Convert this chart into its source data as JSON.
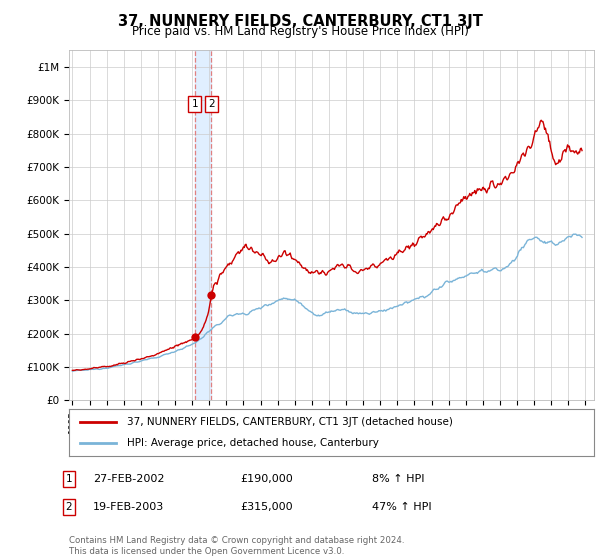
{
  "title": "37, NUNNERY FIELDS, CANTERBURY, CT1 3JT",
  "subtitle": "Price paid vs. HM Land Registry's House Price Index (HPI)",
  "hpi_color": "#7ab4d8",
  "price_color": "#cc0000",
  "dashed_color": "#e08080",
  "shade_color": "#ddeeff",
  "ylim": [
    0,
    1050000
  ],
  "yticks": [
    0,
    100000,
    200000,
    300000,
    400000,
    500000,
    600000,
    700000,
    800000,
    900000,
    1000000
  ],
  "ytick_labels": [
    "£0",
    "£100K",
    "£200K",
    "£300K",
    "£400K",
    "£500K",
    "£600K",
    "£700K",
    "£800K",
    "£900K",
    "£1M"
  ],
  "legend_label_red": "37, NUNNERY FIELDS, CANTERBURY, CT1 3JT (detached house)",
  "legend_label_blue": "HPI: Average price, detached house, Canterbury",
  "transaction1_date": "27-FEB-2002",
  "transaction1_price": "£190,000",
  "transaction1_pct": "8% ↑ HPI",
  "transaction1_year": 2002.15,
  "transaction1_value": 190000,
  "transaction2_date": "19-FEB-2003",
  "transaction2_price": "£315,000",
  "transaction2_pct": "47% ↑ HPI",
  "transaction2_year": 2003.13,
  "transaction2_value": 315000,
  "footer": "Contains HM Land Registry data © Crown copyright and database right 2024.\nThis data is licensed under the Open Government Licence v3.0.",
  "background_color": "#ffffff",
  "grid_color": "#cccccc",
  "xlim_left": 1994.8,
  "xlim_right": 2025.5
}
